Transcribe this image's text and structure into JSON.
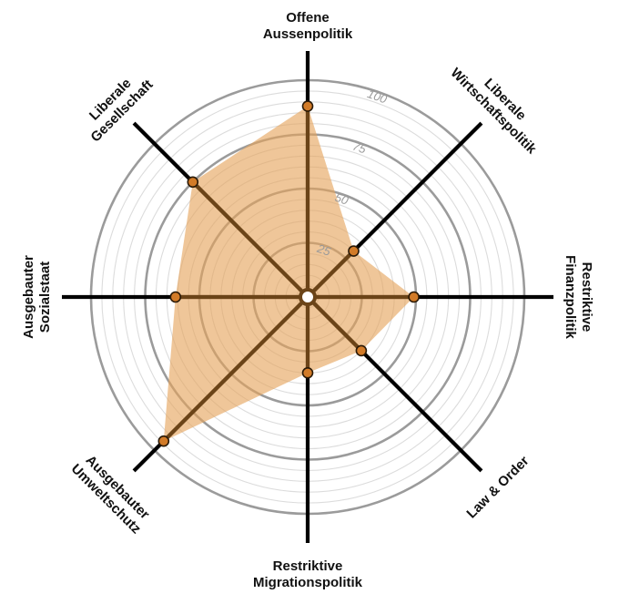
{
  "chart_data": {
    "type": "radar",
    "title": "",
    "rmax": 100,
    "ticks": [
      25,
      50,
      75,
      100
    ],
    "axes": [
      {
        "lines": [
          "Offene",
          "Aussenpolitik"
        ],
        "value": 88
      },
      {
        "lines": [
          "Liberale",
          "Wirtschaftspolitik"
        ],
        "value": 30
      },
      {
        "lines": [
          "Restriktive",
          "Finanzpolitik"
        ],
        "value": 49
      },
      {
        "lines": [
          "Law & Order"
        ],
        "value": 35
      },
      {
        "lines": [
          "Restriktive",
          "Migrationspolitik"
        ],
        "value": 35
      },
      {
        "lines": [
          "Ausgebauter",
          "Umweltschutz"
        ],
        "value": 94
      },
      {
        "lines": [
          "Ausgebauter",
          "Sozialstaat"
        ],
        "value": 61
      },
      {
        "lines": [
          "Liberale",
          "Gesellschaft"
        ],
        "value": 75
      }
    ],
    "colors": {
      "fill": "#e5a35a",
      "fill_opacity": 0.62,
      "spoke_outer": "#000000",
      "spoke_inner": "#6b4418",
      "marker_fill": "#d27b28",
      "marker_stroke": "#2a1a08",
      "ring_major": "#9b9b9b",
      "ring_minor": "#dcdcdc"
    }
  }
}
